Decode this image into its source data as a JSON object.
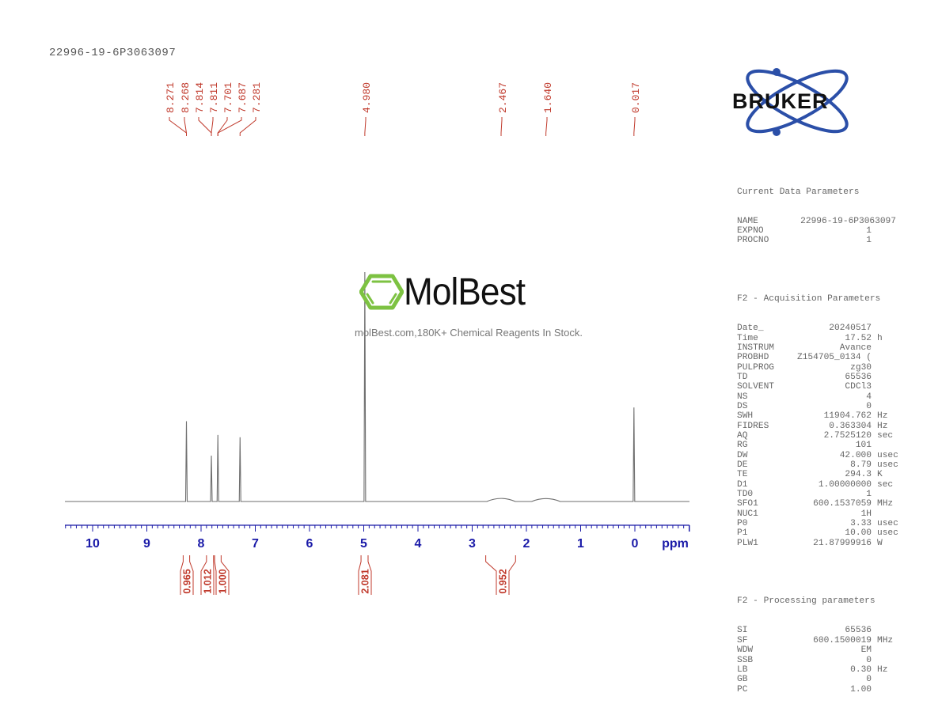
{
  "title": "22996-19-6P3063097",
  "watermark": {
    "brand": "MolBest",
    "tagline": "molBest.com,180K+ Chemical Reagents In Stock.",
    "brand_color": "#7dc242"
  },
  "vendor_logo": {
    "text": "BRUKER",
    "ring_color": "#2b4fa8"
  },
  "colors": {
    "spectrum": "#6e6e6e",
    "axis": "#1a1aa8",
    "annotation": "#c0392b"
  },
  "chart_data": {
    "type": "line",
    "title": "22996-19-6P3063097",
    "xlabel": "ppm",
    "ylabel": "",
    "xlim": [
      10.5,
      -1.0
    ],
    "x_reversed": true,
    "grid": false,
    "x_ticks": [
      "10",
      "9",
      "8",
      "7",
      "6",
      "5",
      "4",
      "3",
      "2",
      "1",
      "0"
    ],
    "peaks": [
      {
        "ppm": 8.27,
        "height": 0.35,
        "label": "8.271 / 8.268"
      },
      {
        "ppm": 7.81,
        "height": 0.2,
        "label": "7.814 / 7.811"
      },
      {
        "ppm": 7.69,
        "height": 0.29,
        "label": "7.701 / 7.687"
      },
      {
        "ppm": 7.281,
        "height": 0.28,
        "label": "7.281"
      },
      {
        "ppm": 4.98,
        "height": 1.0,
        "label": "4.980"
      },
      {
        "ppm": 2.467,
        "height": 0.02,
        "label": "2.467",
        "broad": true
      },
      {
        "ppm": 1.64,
        "height": 0.015,
        "label": "1.640",
        "broad": true
      },
      {
        "ppm": 0.017,
        "height": 0.41,
        "label": "0.017"
      }
    ],
    "peak_labels": [
      "8.271",
      "8.268",
      "7.814",
      "7.811",
      "7.701",
      "7.687",
      "7.281",
      "4.980",
      "2.467",
      "1.640",
      "0.017"
    ],
    "integrals": [
      {
        "center_ppm": 8.27,
        "value": "0.965"
      },
      {
        "center_ppm": 7.81,
        "value": "1.012"
      },
      {
        "center_ppm": 7.69,
        "value": "1.000"
      },
      {
        "center_ppm": 4.98,
        "value": "2.081"
      },
      {
        "center_ppm": 2.47,
        "value": "0.952"
      }
    ]
  },
  "parameters": {
    "current": {
      "header": "Current Data Parameters",
      "rows": [
        {
          "k": "NAME",
          "v": "22996-19-6P3063097",
          "u": ""
        },
        {
          "k": "EXPNO",
          "v": "1",
          "u": ""
        },
        {
          "k": "PROCNO",
          "v": "1",
          "u": ""
        }
      ]
    },
    "acquisition": {
      "header": "F2 - Acquisition Parameters",
      "rows": [
        {
          "k": "Date_",
          "v": "20240517",
          "u": ""
        },
        {
          "k": "Time",
          "v": "17.52",
          "u": "h"
        },
        {
          "k": "INSTRUM",
          "v": "Avance",
          "u": ""
        },
        {
          "k": "PROBHD",
          "v": "Z154705_0134 (",
          "u": ""
        },
        {
          "k": "PULPROG",
          "v": "zg30",
          "u": ""
        },
        {
          "k": "TD",
          "v": "65536",
          "u": ""
        },
        {
          "k": "SOLVENT",
          "v": "CDCl3",
          "u": ""
        },
        {
          "k": "NS",
          "v": "4",
          "u": ""
        },
        {
          "k": "DS",
          "v": "0",
          "u": ""
        },
        {
          "k": "SWH",
          "v": "11904.762",
          "u": "Hz"
        },
        {
          "k": "FIDRES",
          "v": "0.363304",
          "u": "Hz"
        },
        {
          "k": "AQ",
          "v": "2.7525120",
          "u": "sec"
        },
        {
          "k": "RG",
          "v": "101",
          "u": ""
        },
        {
          "k": "DW",
          "v": "42.000",
          "u": "usec"
        },
        {
          "k": "DE",
          "v": "8.79",
          "u": "usec"
        },
        {
          "k": "TE",
          "v": "294.3",
          "u": "K"
        },
        {
          "k": "D1",
          "v": "1.00000000",
          "u": "sec"
        },
        {
          "k": "TD0",
          "v": "1",
          "u": ""
        },
        {
          "k": "SFO1",
          "v": "600.1537059",
          "u": "MHz"
        },
        {
          "k": "NUC1",
          "v": "1H",
          "u": ""
        },
        {
          "k": "P0",
          "v": "3.33",
          "u": "usec"
        },
        {
          "k": "P1",
          "v": "10.00",
          "u": "usec"
        },
        {
          "k": "PLW1",
          "v": "21.87999916",
          "u": "W"
        }
      ]
    },
    "processing": {
      "header": "F2 - Processing parameters",
      "rows": [
        {
          "k": "SI",
          "v": "65536",
          "u": ""
        },
        {
          "k": "SF",
          "v": "600.1500019",
          "u": "MHz"
        },
        {
          "k": "WDW",
          "v": "EM",
          "u": ""
        },
        {
          "k": "SSB",
          "v": "0",
          "u": ""
        },
        {
          "k": "LB",
          "v": "0.30",
          "u": "Hz"
        },
        {
          "k": "GB",
          "v": "0",
          "u": ""
        },
        {
          "k": "PC",
          "v": "1.00",
          "u": ""
        }
      ]
    }
  }
}
